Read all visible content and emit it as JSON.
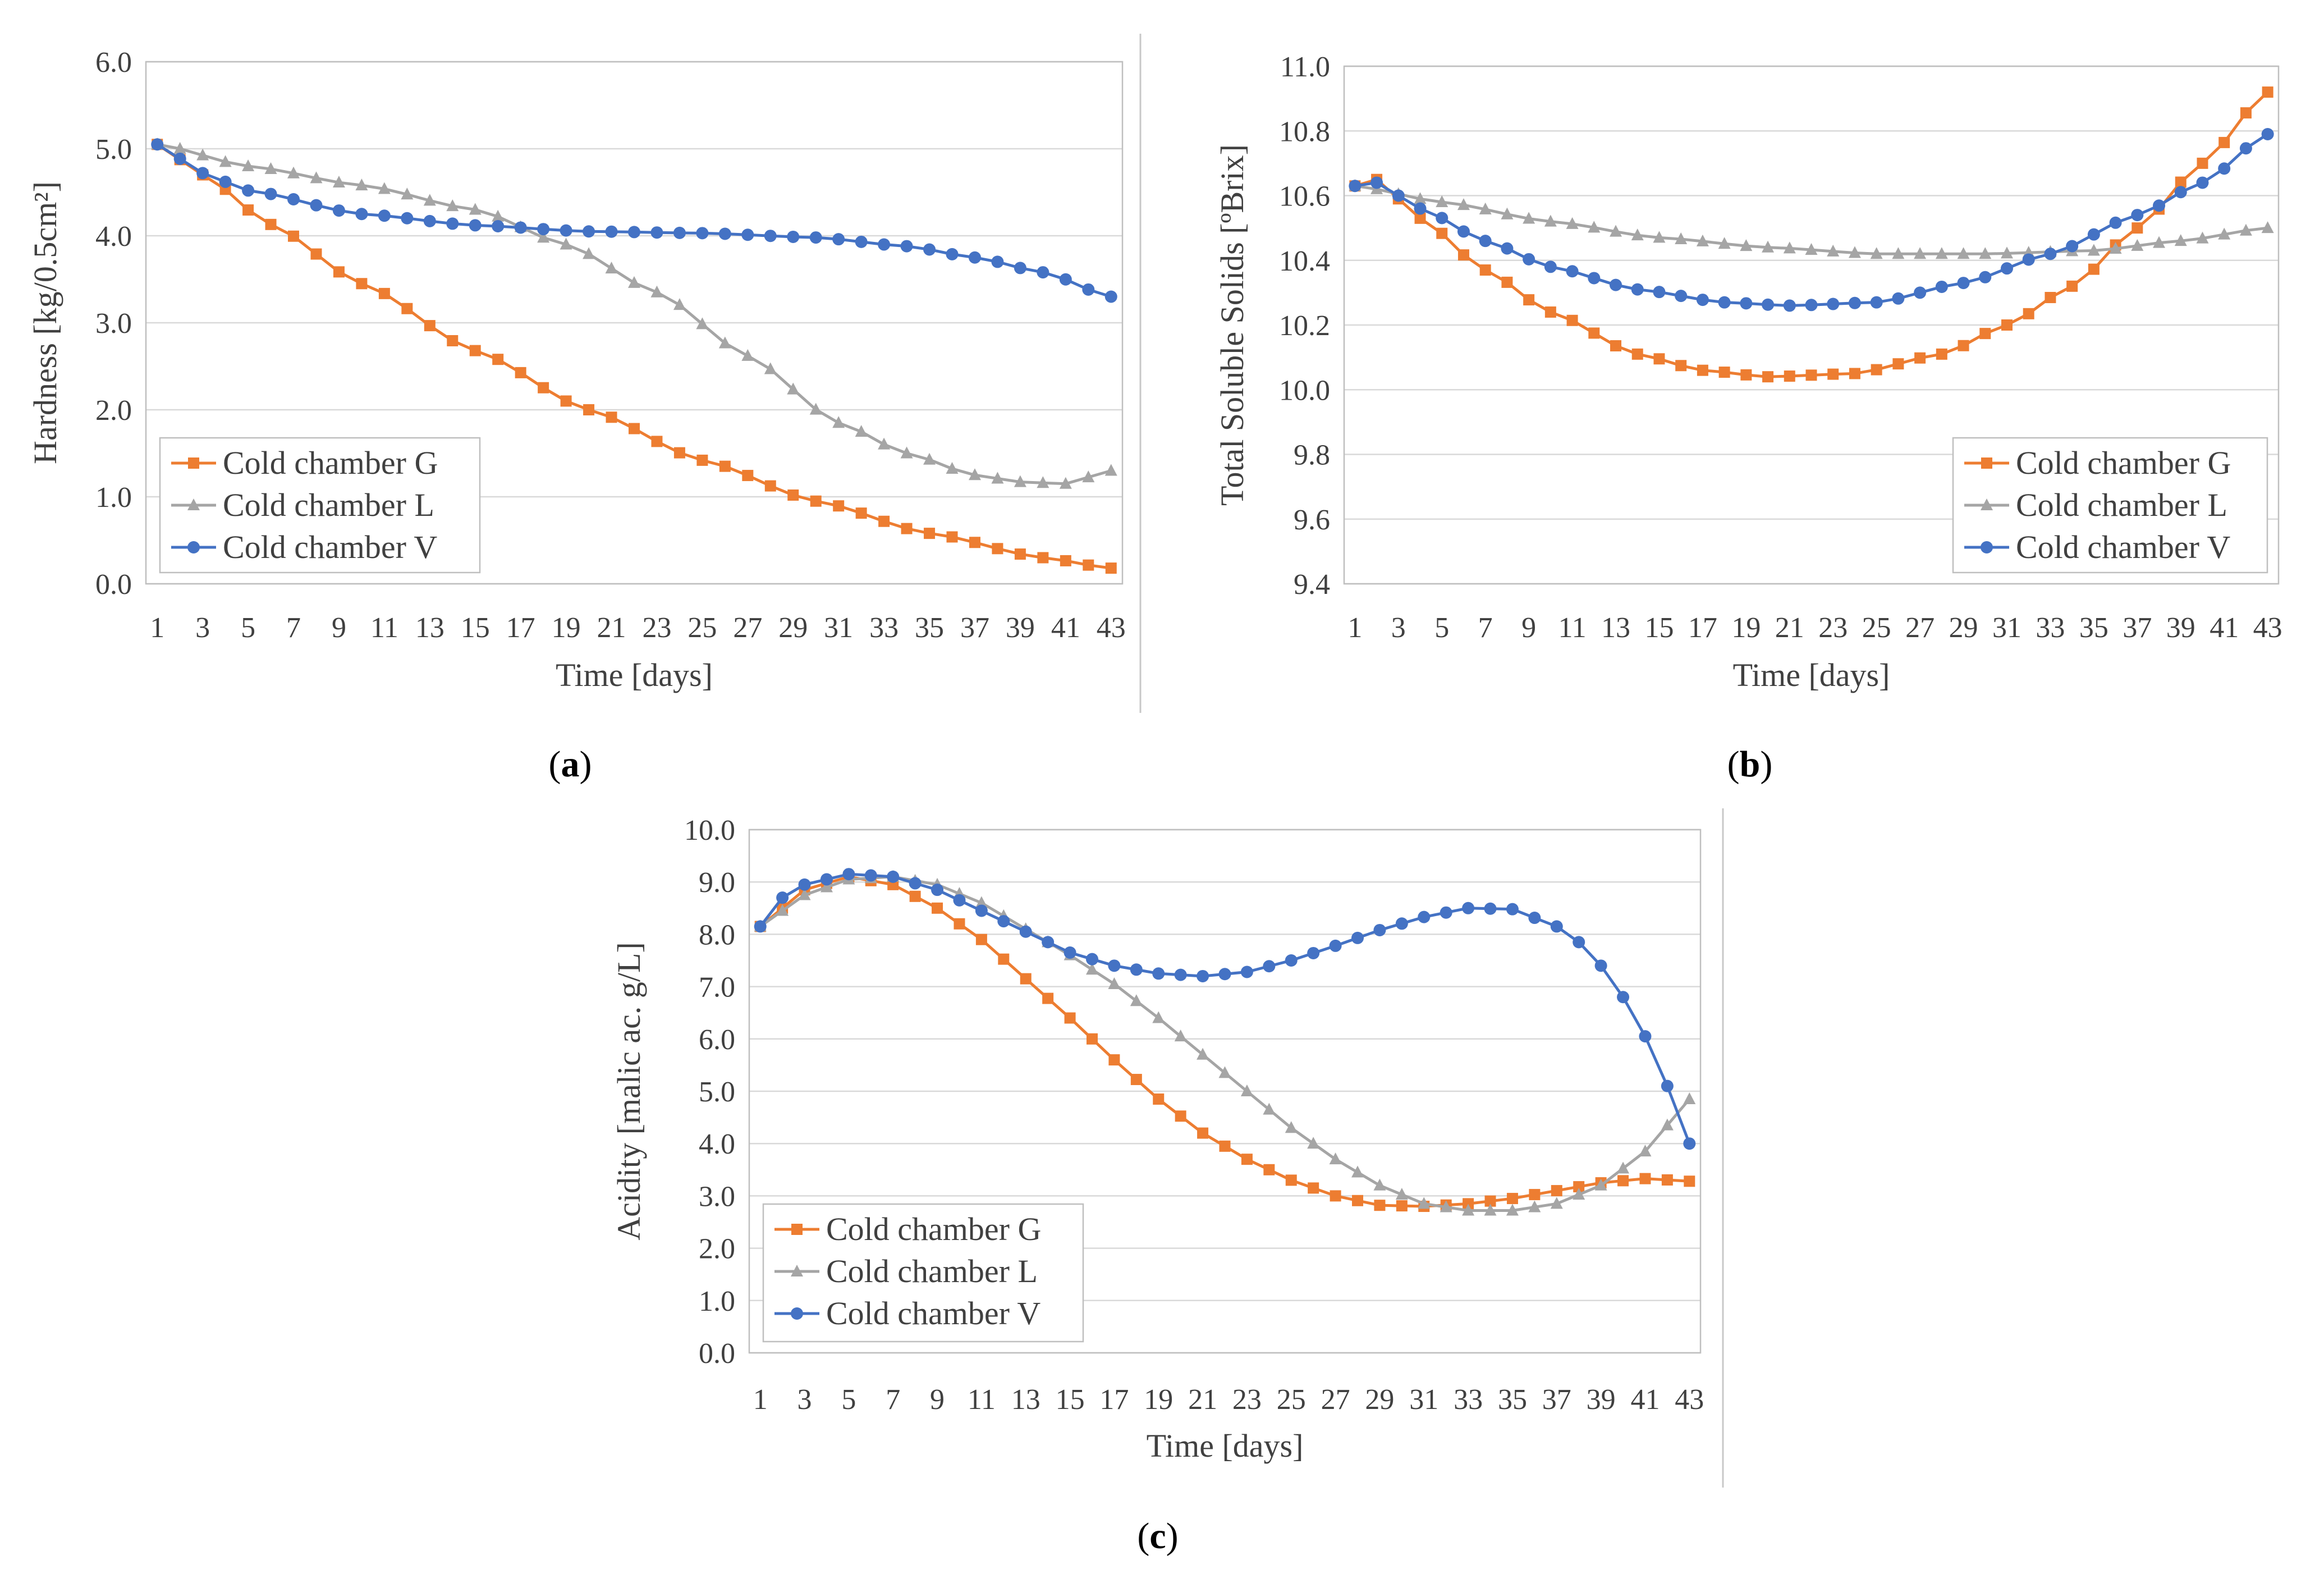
{
  "figure_labels": [
    {
      "open": "(",
      "letter": "a",
      "close": ")"
    },
    {
      "open": "(",
      "letter": "b",
      "close": ")"
    },
    {
      "open": "(",
      "letter": "c",
      "close": ")"
    }
  ],
  "colors": {
    "G": "#ED7D31",
    "L": "#A5A5A5",
    "V": "#4472C4",
    "grid": "#D9D9D9",
    "frame": "#BFBFBF",
    "divider": "#BFBFBF"
  },
  "chart_data": [
    {
      "id": "a",
      "type": "line",
      "title": "",
      "xlabel": "Time [days]",
      "ylabel": "Hardness [kg/0.5cm²]",
      "x_tick_labels": [
        "1",
        "3",
        "5",
        "7",
        "9",
        "11",
        "13",
        "15",
        "17",
        "19",
        "21",
        "23",
        "25",
        "27",
        "29",
        "31",
        "33",
        "35",
        "37",
        "39",
        "41",
        "43"
      ],
      "y_tick_labels": [
        "0.0",
        "1.0",
        "2.0",
        "3.0",
        "4.0",
        "5.0",
        "6.0"
      ],
      "ylim": [
        0,
        6
      ],
      "legend_position": "bottom-left",
      "series": [
        {
          "key": "G",
          "name": "Cold chamber G",
          "marker": "square",
          "anchors": [
            [
              1,
              5.05
            ],
            [
              3,
              4.7
            ],
            [
              6,
              4.13
            ],
            [
              10,
              3.45
            ],
            [
              15,
              2.68
            ],
            [
              20,
              2.0
            ],
            [
              25,
              1.42
            ],
            [
              30,
              0.95
            ],
            [
              35,
              0.58
            ],
            [
              40,
              0.3
            ],
            [
              43,
              0.18
            ]
          ]
        },
        {
          "key": "L",
          "name": "Cold chamber L",
          "marker": "triangle",
          "anchors": [
            [
              1,
              5.05
            ],
            [
              5,
              4.8
            ],
            [
              10,
              4.58
            ],
            [
              15,
              4.3
            ],
            [
              19,
              3.9
            ],
            [
              23,
              3.35
            ],
            [
              27,
              2.62
            ],
            [
              31,
              1.85
            ],
            [
              34,
              1.5
            ],
            [
              37,
              1.25
            ],
            [
              39,
              1.17
            ],
            [
              41,
              1.15
            ],
            [
              43,
              1.3
            ]
          ]
        },
        {
          "key": "V",
          "name": "Cold chamber V",
          "marker": "circle",
          "anchors": [
            [
              1,
              5.05
            ],
            [
              3,
              4.72
            ],
            [
              5,
              4.52
            ],
            [
              10,
              4.25
            ],
            [
              15,
              4.12
            ],
            [
              20,
              4.05
            ],
            [
              25,
              4.03
            ],
            [
              30,
              3.98
            ],
            [
              34,
              3.88
            ],
            [
              37,
              3.75
            ],
            [
              40,
              3.58
            ],
            [
              43,
              3.3
            ]
          ]
        }
      ]
    },
    {
      "id": "b",
      "type": "line",
      "title": "",
      "xlabel": "Time [days]",
      "ylabel": "Total Soluble Solids [ºBrix]",
      "x_tick_labels": [
        "1",
        "3",
        "5",
        "7",
        "9",
        "11",
        "13",
        "15",
        "17",
        "19",
        "21",
        "23",
        "25",
        "27",
        "29",
        "31",
        "33",
        "35",
        "37",
        "39",
        "41",
        "43"
      ],
      "y_tick_labels": [
        "9.4",
        "9.6",
        "9.8",
        "10.0",
        "10.2",
        "10.4",
        "10.6",
        "10.8",
        "11.0"
      ],
      "ylim": [
        9.4,
        11.0
      ],
      "legend_position": "bottom-right",
      "series": [
        {
          "key": "G",
          "name": "Cold chamber G",
          "marker": "square",
          "anchors": [
            [
              1,
              10.63
            ],
            [
              2,
              10.65
            ],
            [
              4,
              10.53
            ],
            [
              7,
              10.37
            ],
            [
              10,
              10.24
            ],
            [
              14,
              10.11
            ],
            [
              17,
              10.06
            ],
            [
              20,
              10.04
            ],
            [
              24,
              10.05
            ],
            [
              28,
              10.11
            ],
            [
              31,
              10.2
            ],
            [
              34,
              10.32
            ],
            [
              37,
              10.5
            ],
            [
              40,
              10.7
            ],
            [
              43,
              10.92
            ]
          ]
        },
        {
          "key": "L",
          "name": "Cold chamber L",
          "marker": "triangle",
          "anchors": [
            [
              1,
              10.63
            ],
            [
              5,
              10.58
            ],
            [
              10,
              10.52
            ],
            [
              15,
              10.47
            ],
            [
              20,
              10.44
            ],
            [
              25,
              10.42
            ],
            [
              30,
              10.42
            ],
            [
              35,
              10.43
            ],
            [
              39,
              10.46
            ],
            [
              43,
              10.5
            ]
          ]
        },
        {
          "key": "V",
          "name": "Cold chamber V",
          "marker": "circle",
          "anchors": [
            [
              1,
              10.63
            ],
            [
              2,
              10.64
            ],
            [
              4,
              10.56
            ],
            [
              7,
              10.46
            ],
            [
              10,
              10.38
            ],
            [
              14,
              10.31
            ],
            [
              18,
              10.27
            ],
            [
              21,
              10.26
            ],
            [
              25,
              10.27
            ],
            [
              29,
              10.33
            ],
            [
              33,
              10.42
            ],
            [
              37,
              10.54
            ],
            [
              40,
              10.64
            ],
            [
              43,
              10.79
            ]
          ]
        }
      ]
    },
    {
      "id": "c",
      "type": "line",
      "title": "",
      "xlabel": "Time [days]",
      "ylabel": "Acidity [malic ac. g/L]",
      "x_tick_labels": [
        "1",
        "3",
        "5",
        "7",
        "9",
        "11",
        "13",
        "15",
        "17",
        "19",
        "21",
        "23",
        "25",
        "27",
        "29",
        "31",
        "33",
        "35",
        "37",
        "39",
        "41",
        "43"
      ],
      "y_tick_labels": [
        "0.0",
        "1.0",
        "2.0",
        "3.0",
        "4.0",
        "5.0",
        "6.0",
        "7.0",
        "8.0",
        "9.0",
        "10.0"
      ],
      "ylim": [
        0,
        10
      ],
      "legend_position": "bottom-left",
      "series": [
        {
          "key": "G",
          "name": "Cold chamber G",
          "marker": "square",
          "anchors": [
            [
              1,
              8.15
            ],
            [
              3,
              8.85
            ],
            [
              5,
              9.1
            ],
            [
              7,
              8.95
            ],
            [
              9,
              8.5
            ],
            [
              11,
              7.9
            ],
            [
              13,
              7.15
            ],
            [
              15,
              6.4
            ],
            [
              17,
              5.6
            ],
            [
              19,
              4.85
            ],
            [
              21,
              4.2
            ],
            [
              23,
              3.7
            ],
            [
              25,
              3.3
            ],
            [
              27,
              3.0
            ],
            [
              29,
              2.82
            ],
            [
              31,
              2.8
            ],
            [
              33,
              2.85
            ],
            [
              35,
              2.95
            ],
            [
              37,
              3.1
            ],
            [
              39,
              3.25
            ],
            [
              41,
              3.33
            ],
            [
              43,
              3.28
            ]
          ]
        },
        {
          "key": "L",
          "name": "Cold chamber L",
          "marker": "triangle",
          "anchors": [
            [
              1,
              8.15
            ],
            [
              3,
              8.75
            ],
            [
              5,
              9.05
            ],
            [
              7,
              9.1
            ],
            [
              9,
              8.95
            ],
            [
              11,
              8.6
            ],
            [
              13,
              8.1
            ],
            [
              15,
              7.6
            ],
            [
              17,
              7.05
            ],
            [
              19,
              6.4
            ],
            [
              21,
              5.7
            ],
            [
              23,
              5.0
            ],
            [
              25,
              4.3
            ],
            [
              27,
              3.7
            ],
            [
              29,
              3.2
            ],
            [
              31,
              2.85
            ],
            [
              33,
              2.72
            ],
            [
              35,
              2.72
            ],
            [
              37,
              2.85
            ],
            [
              39,
              3.2
            ],
            [
              41,
              3.85
            ],
            [
              43,
              4.85
            ]
          ]
        },
        {
          "key": "V",
          "name": "Cold chamber V",
          "marker": "circle",
          "anchors": [
            [
              1,
              8.15
            ],
            [
              2,
              8.7
            ],
            [
              3,
              8.95
            ],
            [
              5,
              9.15
            ],
            [
              7,
              9.1
            ],
            [
              9,
              8.85
            ],
            [
              11,
              8.45
            ],
            [
              13,
              8.05
            ],
            [
              15,
              7.65
            ],
            [
              17,
              7.4
            ],
            [
              19,
              7.25
            ],
            [
              21,
              7.2
            ],
            [
              23,
              7.28
            ],
            [
              25,
              7.5
            ],
            [
              27,
              7.78
            ],
            [
              29,
              8.08
            ],
            [
              31,
              8.33
            ],
            [
              33,
              8.5
            ],
            [
              35,
              8.48
            ],
            [
              37,
              8.15
            ],
            [
              38,
              7.85
            ],
            [
              39,
              7.4
            ],
            [
              40,
              6.8
            ],
            [
              41,
              6.05
            ],
            [
              42,
              5.1
            ],
            [
              43,
              4.0
            ]
          ]
        }
      ]
    }
  ]
}
